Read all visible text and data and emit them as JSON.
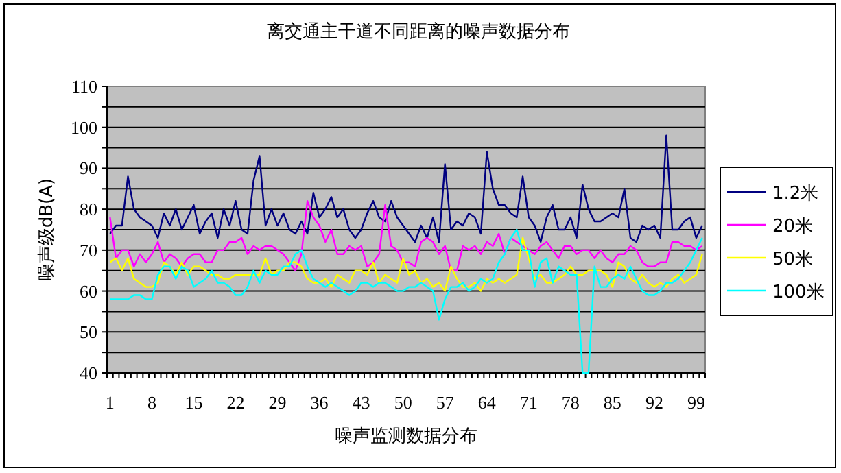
{
  "chart_data": {
    "type": "line",
    "title": "离交通主干道不同距离的噪声数据分布",
    "xlabel": "噪声监测数据分布",
    "ylabel": "噪声级dB(A)",
    "categories": [
      "1",
      null,
      null,
      null,
      null,
      null,
      null,
      "8",
      null,
      null,
      null,
      null,
      null,
      null,
      "15",
      null,
      null,
      null,
      null,
      null,
      null,
      "22",
      null,
      null,
      null,
      null,
      null,
      null,
      "29",
      null,
      null,
      null,
      null,
      null,
      null,
      "36",
      null,
      null,
      null,
      null,
      null,
      null,
      "43",
      null,
      null,
      null,
      null,
      null,
      null,
      "50",
      null,
      null,
      null,
      null,
      null,
      null,
      "57",
      null,
      null,
      null,
      null,
      null,
      null,
      "64",
      null,
      null,
      null,
      null,
      null,
      null,
      "71",
      null,
      null,
      null,
      null,
      null,
      null,
      "78",
      null,
      null,
      null,
      null,
      null,
      null,
      "85",
      null,
      null,
      null,
      null,
      null,
      null,
      "92",
      null,
      null,
      null,
      null,
      null,
      null,
      "99",
      null
    ],
    "ylim": [
      40,
      110
    ],
    "yticks": [
      40,
      {
        "value": 45,
        "label": null
      },
      50,
      {
        "value": 55,
        "label": null
      },
      60,
      {
        "value": 65,
        "label": null
      },
      70,
      {
        "value": 75,
        "label": null
      },
      80,
      {
        "value": 85,
        "label": null
      },
      90,
      {
        "value": 95,
        "label": null
      },
      100,
      {
        "value": 105,
        "label": null
      },
      110
    ],
    "grid": "y",
    "legend": "right",
    "series": [
      {
        "name": "1.2米",
        "color": "#000080",
        "values": [
          74,
          76,
          76,
          88,
          80,
          78,
          77,
          76,
          73,
          79,
          76,
          80,
          75,
          78,
          81,
          74,
          77,
          79,
          73,
          80,
          76,
          82,
          75,
          74,
          87,
          93,
          76,
          80,
          76,
          79,
          75,
          74,
          77,
          74,
          84,
          78,
          80,
          83,
          78,
          80,
          75,
          73,
          75,
          79,
          82,
          78,
          77,
          82,
          78,
          76,
          74,
          72,
          76,
          73,
          78,
          72,
          91,
          75,
          77,
          76,
          79,
          78,
          74,
          94,
          85,
          81,
          81,
          79,
          78,
          88,
          78,
          76,
          72,
          78,
          81,
          75,
          75,
          78,
          73,
          86,
          80,
          77,
          77,
          78,
          79,
          78,
          85,
          73,
          72,
          76,
          75,
          76,
          73,
          98,
          75,
          75,
          77,
          78,
          73,
          76
        ]
      },
      {
        "name": "20米",
        "color": "#ff00ff",
        "values": [
          78,
          68,
          70,
          70,
          66,
          69,
          67,
          69,
          72,
          67,
          69,
          68,
          66,
          68,
          69,
          69,
          67,
          67,
          70,
          70,
          72,
          72,
          73,
          69,
          71,
          70,
          71,
          71,
          70,
          69,
          67,
          65,
          69,
          82,
          78,
          76,
          72,
          75,
          69,
          69,
          71,
          70,
          71,
          66,
          67,
          69,
          81,
          71,
          70,
          67,
          67,
          66,
          72,
          73,
          72,
          69,
          71,
          65,
          65,
          71,
          70,
          71,
          69,
          72,
          71,
          74,
          69,
          73,
          72,
          71,
          70,
          69,
          71,
          72,
          70,
          68,
          71,
          71,
          69,
          70,
          70,
          68,
          70,
          68,
          67,
          69,
          69,
          71,
          70,
          67,
          66,
          66,
          67,
          67,
          72,
          72,
          71,
          71,
          70,
          71
        ]
      },
      {
        "name": "50米",
        "color": "#ffff00",
        "values": [
          67,
          68,
          65,
          68,
          63,
          62,
          61,
          61,
          62,
          67,
          66,
          64,
          67,
          64,
          66,
          66,
          65,
          64,
          64,
          63,
          63,
          64,
          64,
          64,
          64,
          64,
          68,
          64,
          65,
          65,
          67,
          67,
          66,
          63,
          62,
          62,
          63,
          61,
          64,
          63,
          62,
          65,
          65,
          64,
          67,
          62,
          64,
          63,
          62,
          68,
          64,
          65,
          62,
          63,
          61,
          62,
          60,
          66,
          63,
          61,
          61,
          62,
          60,
          63,
          62,
          63,
          62,
          63,
          64,
          73,
          68,
          63,
          64,
          62,
          62,
          63,
          64,
          66,
          64,
          64,
          65,
          65,
          65,
          64,
          61,
          67,
          66,
          63,
          62,
          64,
          62,
          61,
          62,
          61,
          63,
          64,
          62,
          63,
          64,
          69
        ]
      },
      {
        "name": "100米",
        "color": "#00ffff",
        "values": [
          58,
          58,
          58,
          58,
          59,
          59,
          58,
          58,
          64,
          66,
          66,
          63,
          66,
          65,
          61,
          62,
          63,
          65,
          62,
          62,
          61,
          59,
          59,
          61,
          65,
          62,
          65,
          64,
          64,
          66,
          66,
          69,
          70,
          66,
          63,
          62,
          61,
          62,
          61,
          60,
          59,
          60,
          62,
          62,
          61,
          62,
          62,
          61,
          60,
          60,
          61,
          61,
          62,
          61,
          60,
          53,
          58,
          61,
          61,
          62,
          60,
          61,
          63,
          62,
          63,
          67,
          69,
          73,
          75,
          70,
          70,
          61,
          67,
          68,
          62,
          66,
          65,
          64,
          64,
          40,
          40,
          66,
          61,
          61,
          63,
          64,
          63,
          66,
          63,
          60,
          59,
          59,
          60,
          62,
          62,
          63,
          65,
          67,
          70,
          73
        ]
      }
    ]
  }
}
